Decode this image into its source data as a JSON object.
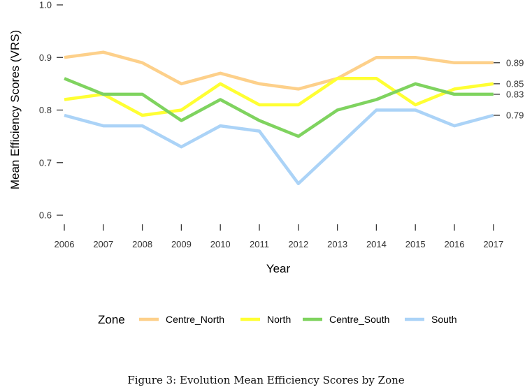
{
  "chart_data": {
    "type": "line",
    "xlabel": "Year",
    "ylabel": "Mean Efficiency Scores (VRS)",
    "ylim": [
      0.6,
      1.0
    ],
    "y_ticks": [
      "0.6",
      "0.7",
      "0.8",
      "0.9",
      "1.0"
    ],
    "x": [
      "2006",
      "2007",
      "2008",
      "2009",
      "2010",
      "2011",
      "2012",
      "2013",
      "2014",
      "2015",
      "2016",
      "2017"
    ],
    "series": [
      {
        "name": "Centre_North",
        "color": "#FDD08A",
        "values": [
          0.9,
          0.91,
          0.89,
          0.85,
          0.87,
          0.85,
          0.84,
          0.86,
          0.9,
          0.9,
          0.89,
          0.89
        ]
      },
      {
        "name": "North",
        "color": "#FFFF33",
        "values": [
          0.82,
          0.83,
          0.79,
          0.8,
          0.85,
          0.81,
          0.81,
          0.86,
          0.86,
          0.81,
          0.84,
          0.85
        ]
      },
      {
        "name": "Centre_South",
        "color": "#7FD35F",
        "values": [
          0.86,
          0.83,
          0.83,
          0.78,
          0.82,
          0.78,
          0.75,
          0.8,
          0.82,
          0.85,
          0.83,
          0.83
        ]
      },
      {
        "name": "South",
        "color": "#ABD3F7",
        "values": [
          0.79,
          0.77,
          0.77,
          0.73,
          0.77,
          0.76,
          0.66,
          0.73,
          0.8,
          0.8,
          0.77,
          0.79
        ]
      }
    ],
    "end_labels": [
      "0.89",
      "0.85",
      "0.83",
      "0.79"
    ],
    "legend_title": "Zone",
    "legend_position": "bottom",
    "grid": false
  },
  "caption": "Figure 3: Evolution Mean Efficiency Scores by Zone"
}
